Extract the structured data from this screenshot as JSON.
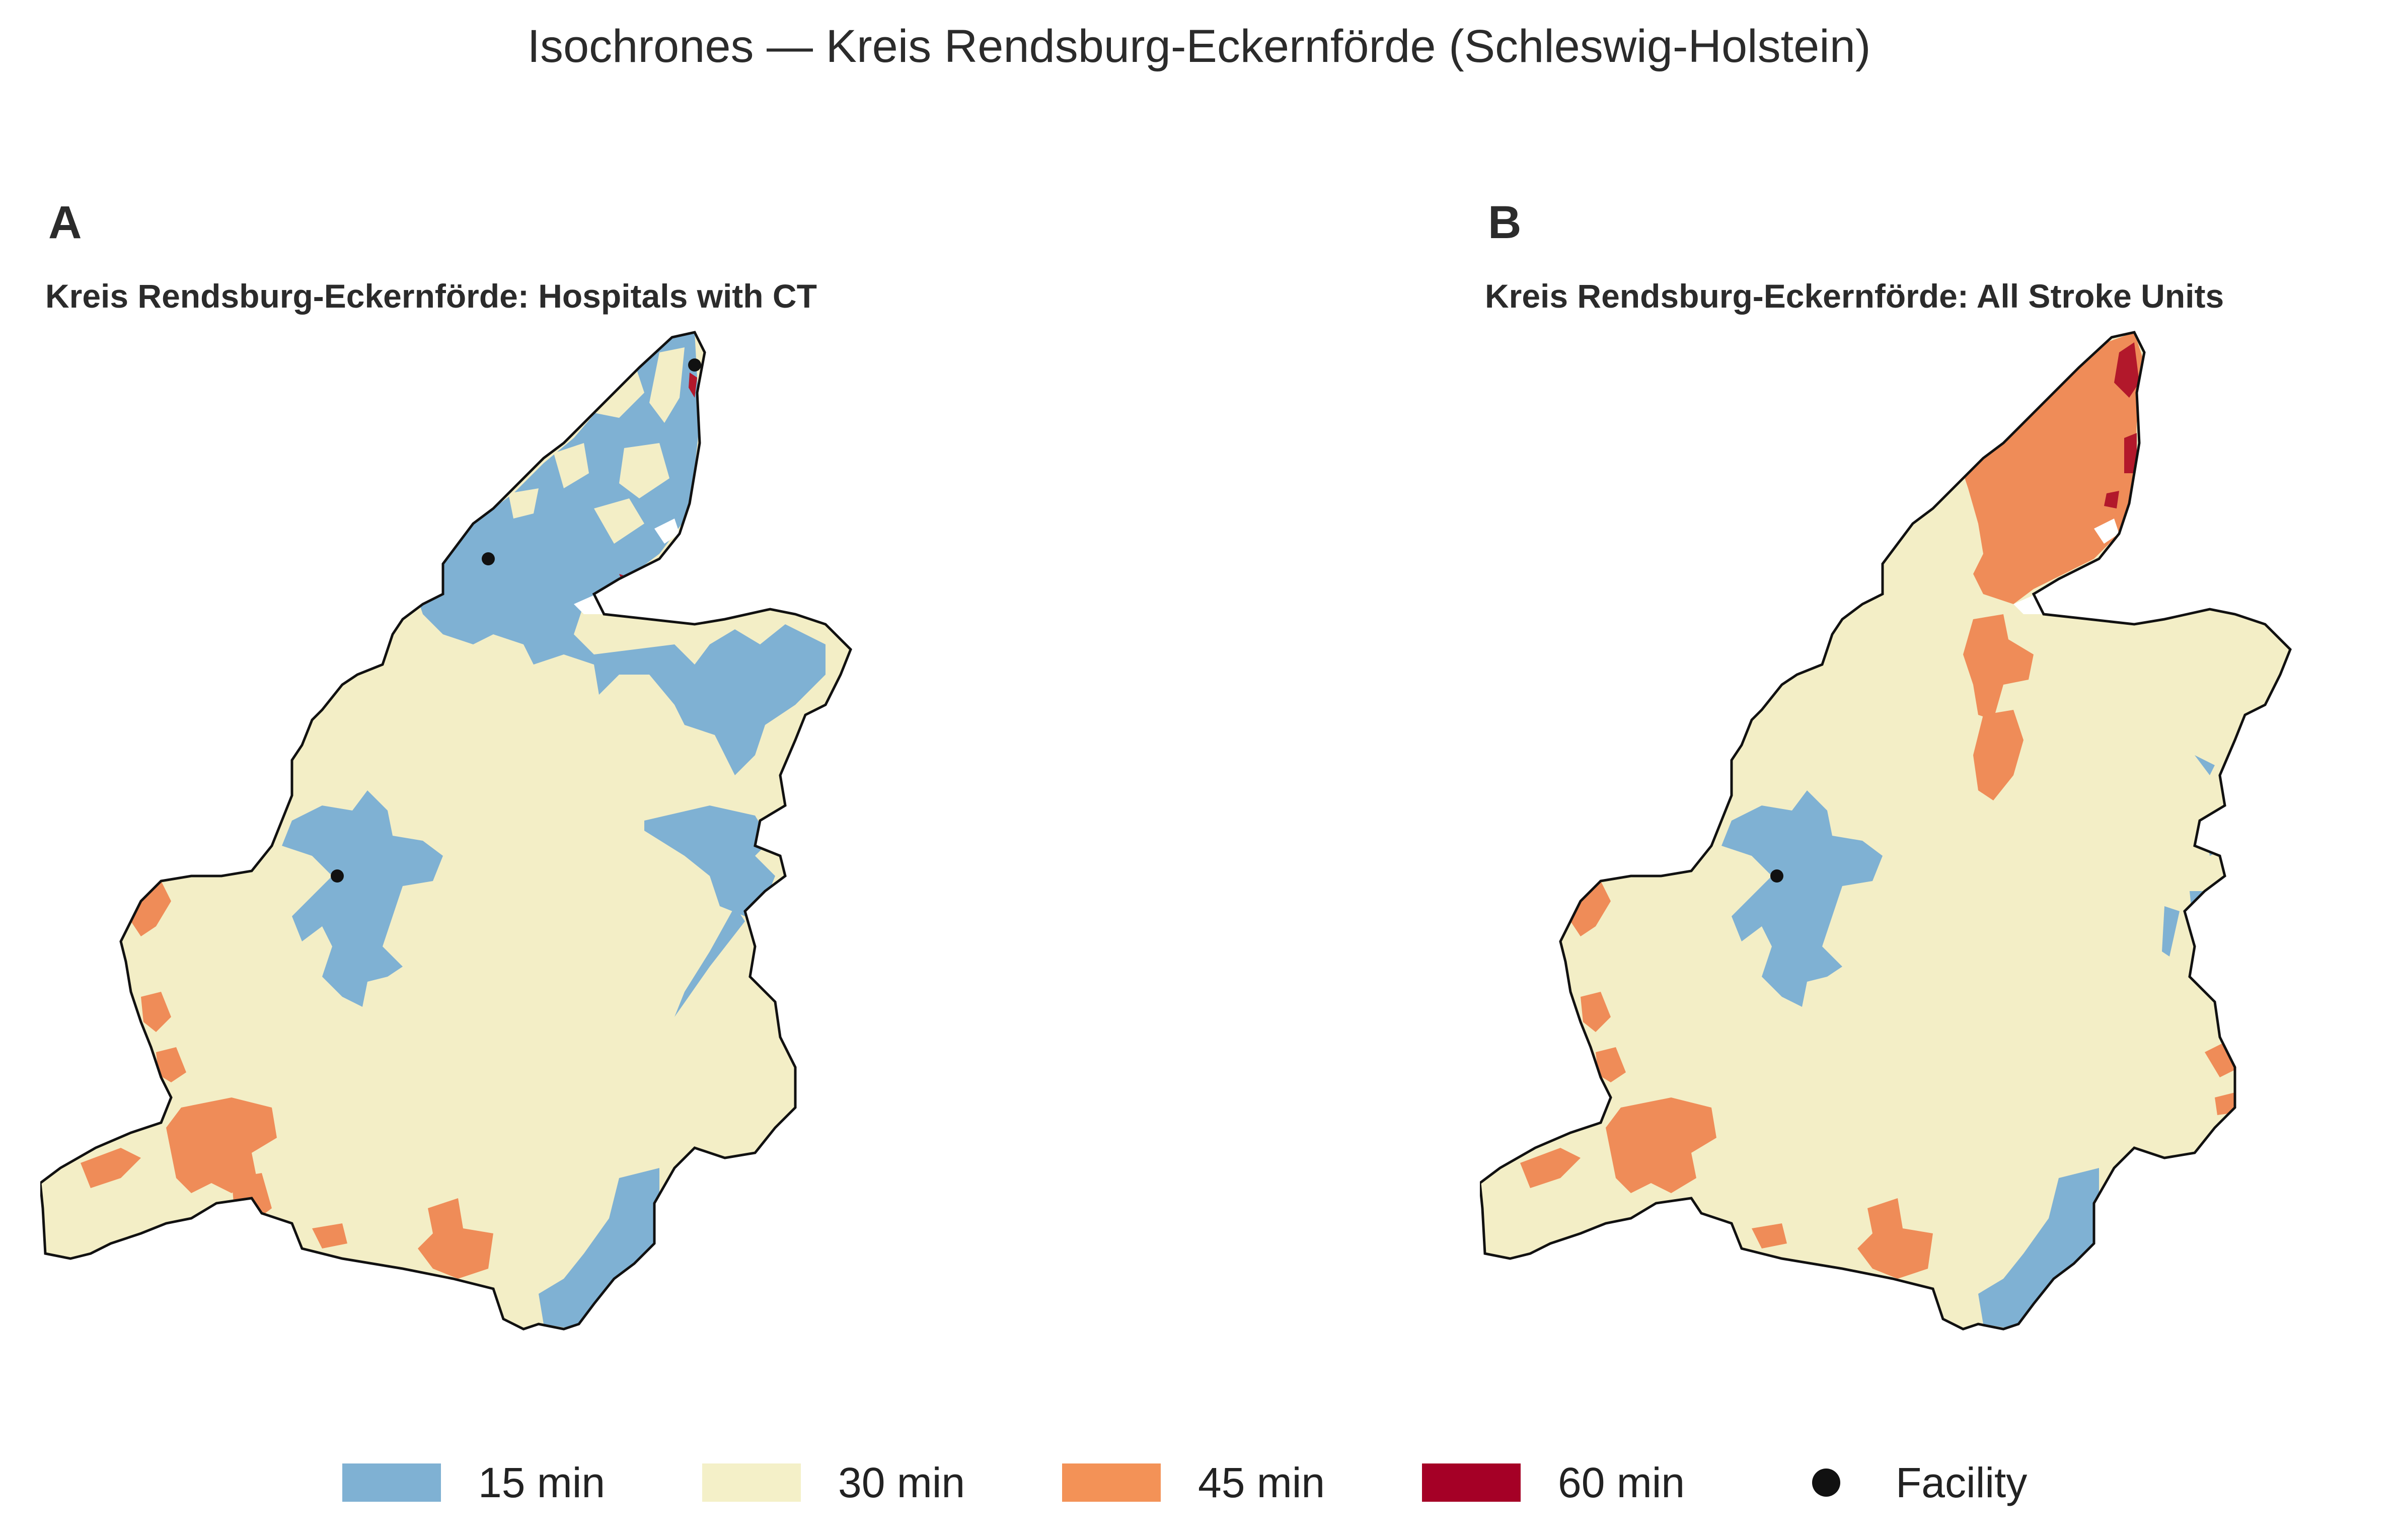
{
  "figure": {
    "title": "Isochrones — Kreis Rendsburg-Eckernförde (Schleswig-Holstein)"
  },
  "panels": [
    {
      "letter": "A",
      "subtitle": "Kreis Rendsburg-Eckernförde: Hospitals with CT",
      "facility_count": 3
    },
    {
      "letter": "B",
      "subtitle": "Kreis Rendsburg-Eckernförde: All Stroke Units",
      "facility_count": 1
    }
  ],
  "legend": {
    "items": [
      {
        "label": "15 min",
        "color": "#7fb1d3"
      },
      {
        "label": "30 min",
        "color": "#f4f0c8"
      },
      {
        "label": "45 min",
        "color": "#f39257"
      },
      {
        "label": "60 min",
        "color": "#a50026"
      },
      {
        "label": "Facility",
        "color": "#111111"
      }
    ]
  },
  "colors": {
    "c15": "#7fb1d3",
    "c30": "#f3eec6",
    "c45": "#ef8c58",
    "c60": "#b2182b",
    "outline": "#111111"
  }
}
